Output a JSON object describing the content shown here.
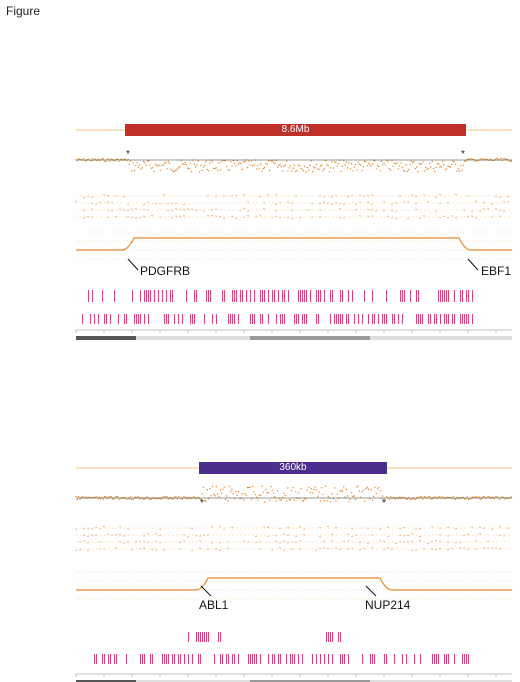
{
  "figure_label": "Figure",
  "panel_top": {
    "banner_label": "8.6Mb",
    "banner_color": "#c0302a",
    "left_gene": "PDGFRB",
    "right_gene": "EBF1",
    "breakpoint_marker": "*"
  },
  "panel_bottom": {
    "banner_label": "360kb",
    "banner_color": "#4a2d8c",
    "left_gene": "ABL1",
    "right_gene": "NUP214",
    "breakpoint_marker": "*"
  },
  "colors": {
    "copy_number_points": "#e08a2a",
    "guide_lines": "#f0c080",
    "track_marks": "#e0407a",
    "gene_text_faint": "#f4a0c0"
  }
}
